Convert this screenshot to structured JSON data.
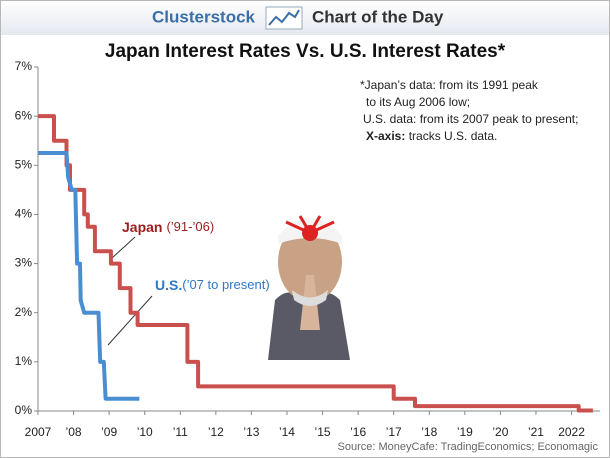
{
  "chart_data": {
    "type": "line",
    "brand": "Clusterstock",
    "subtitle": "Chart of the Day",
    "title": "Japan Interest Rates Vs. U.S. Interest Rates*",
    "note": [
      "*Japan’s data: from its 1991 peak",
      "to its Aug 2006 low;",
      "U.S. data: from its 2007 peak to present;"
    ],
    "note_axis": {
      "label": "X-axis:",
      "text": " tracks U.S. data."
    },
    "source": "Source: MoneyCafe: TradingEconomics; Economagic",
    "series": [
      {
        "name": "Japan",
        "detail": "(’91-’06)",
        "color": "#c9504c",
        "x": [
          2007,
          2007.45,
          2007.45,
          2007.8,
          2007.8,
          2007.9,
          2007.9,
          2008.3,
          2008.3,
          2008.4,
          2008.4,
          2008.6,
          2008.6,
          2009.05,
          2009.05,
          2009.3,
          2009.3,
          2009.6,
          2009.6,
          2009.8,
          2009.8,
          2011.2,
          2011.2,
          2011.5,
          2011.5,
          2017.0,
          2017.0,
          2017.6,
          2017.6,
          2022.2,
          2022.2,
          2022.6
        ],
        "values": [
          6,
          6,
          5.5,
          5.5,
          5,
          5,
          4.5,
          4.5,
          4,
          4,
          3.75,
          3.75,
          3.25,
          3.25,
          3,
          3,
          2.5,
          2.5,
          2,
          2,
          1.75,
          1.75,
          1,
          1,
          0.5,
          0.5,
          0.25,
          0.25,
          0.1,
          0.1,
          0.01,
          0.01
        ]
      },
      {
        "name": "U.S.",
        "detail": "(’07 to present)",
        "color": "#4a8ed2",
        "x": [
          2007,
          2007.8,
          2007.85,
          2007.95,
          2008.05,
          2008.1,
          2008.18,
          2008.2,
          2008.3,
          2008.7,
          2008.75,
          2008.85,
          2008.9,
          2009.85
        ],
        "values": [
          5.25,
          5.25,
          4.75,
          4.5,
          4.5,
          3,
          3,
          2.25,
          2,
          2,
          1,
          1,
          0.25,
          0.25
        ]
      }
    ],
    "xlim": [
      2007,
      2022.8
    ],
    "ylim": [
      0,
      7
    ],
    "xticks": [
      2007,
      {
        "value": 2008,
        "label": "’08"
      },
      {
        "value": 2009,
        "label": "’09"
      },
      {
        "value": 2010,
        "label": "’10"
      },
      {
        "value": 2011,
        "label": "’11"
      },
      {
        "value": 2012,
        "label": "’12"
      },
      {
        "value": 2013,
        "label": "’13"
      },
      {
        "value": 2014,
        "label": "’14"
      },
      {
        "value": 2015,
        "label": "’15"
      },
      {
        "value": 2016,
        "label": "’16"
      },
      {
        "value": 2017,
        "label": "’17"
      },
      {
        "value": 2018,
        "label": "’18"
      },
      {
        "value": 2019,
        "label": "’19"
      },
      {
        "value": 2020,
        "label": "’20"
      },
      {
        "value": 2021,
        "label": "’21"
      },
      2022
    ],
    "yticks": [
      {
        "value": 0,
        "label": "0%"
      },
      {
        "value": 1,
        "label": "1%"
      },
      {
        "value": 2,
        "label": "2%"
      },
      {
        "value": 3,
        "label": "3%"
      },
      {
        "value": 4,
        "label": "4%"
      },
      {
        "value": 5,
        "label": "5%"
      },
      {
        "value": 6,
        "label": "6%"
      },
      {
        "value": 7,
        "label": "7%"
      }
    ]
  }
}
